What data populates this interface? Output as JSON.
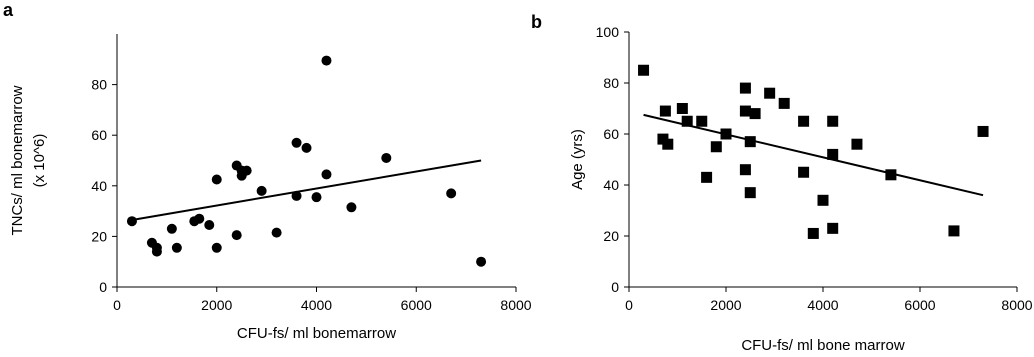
{
  "chart_data": [
    {
      "panel": "a",
      "type": "scatter",
      "marker": "circle",
      "xlabel": "CFU-fs/ ml bonemarrow",
      "ylabel_lines": [
        "TNCs/ ml bonemarrow",
        "(x 10^6)"
      ],
      "xlim": [
        0,
        8000
      ],
      "ylim": [
        0,
        100
      ],
      "xticks": [
        0,
        2000,
        4000,
        6000,
        8000
      ],
      "yticks": [
        0,
        20,
        40,
        60,
        80
      ],
      "points": [
        {
          "x": 300,
          "y": 26
        },
        {
          "x": 700,
          "y": 17.5
        },
        {
          "x": 800,
          "y": 14
        },
        {
          "x": 800,
          "y": 15.5
        },
        {
          "x": 1100,
          "y": 23
        },
        {
          "x": 1200,
          "y": 15.5
        },
        {
          "x": 1550,
          "y": 26
        },
        {
          "x": 1650,
          "y": 27
        },
        {
          "x": 1850,
          "y": 24.5
        },
        {
          "x": 2000,
          "y": 15.5
        },
        {
          "x": 2000,
          "y": 42.5
        },
        {
          "x": 2400,
          "y": 48
        },
        {
          "x": 2400,
          "y": 20.5
        },
        {
          "x": 2500,
          "y": 44
        },
        {
          "x": 2500,
          "y": 46
        },
        {
          "x": 2600,
          "y": 46
        },
        {
          "x": 2900,
          "y": 38
        },
        {
          "x": 3200,
          "y": 21.5
        },
        {
          "x": 3600,
          "y": 57
        },
        {
          "x": 3600,
          "y": 36
        },
        {
          "x": 3800,
          "y": 55
        },
        {
          "x": 4000,
          "y": 35.5
        },
        {
          "x": 4200,
          "y": 44.5
        },
        {
          "x": 4200,
          "y": 89.5
        },
        {
          "x": 4700,
          "y": 31.5
        },
        {
          "x": 5400,
          "y": 51
        },
        {
          "x": 6700,
          "y": 37
        },
        {
          "x": 7300,
          "y": 10
        }
      ],
      "trendline": {
        "x": [
          300,
          7300
        ],
        "y": [
          26.5,
          50
        ]
      }
    },
    {
      "panel": "b",
      "type": "scatter",
      "marker": "square",
      "xlabel": "CFU-fs/ ml bone marrow",
      "ylabel": "Age (yrs)",
      "xlim": [
        0,
        8000
      ],
      "ylim": [
        0,
        100
      ],
      "xticks": [
        0,
        2000,
        4000,
        6000,
        8000
      ],
      "yticks": [
        0,
        20,
        40,
        60,
        80,
        100
      ],
      "points": [
        {
          "x": 300,
          "y": 85
        },
        {
          "x": 700,
          "y": 58
        },
        {
          "x": 750,
          "y": 69
        },
        {
          "x": 800,
          "y": 56
        },
        {
          "x": 1100,
          "y": 70
        },
        {
          "x": 1200,
          "y": 65
        },
        {
          "x": 1500,
          "y": 65
        },
        {
          "x": 1600,
          "y": 43
        },
        {
          "x": 1800,
          "y": 55
        },
        {
          "x": 2000,
          "y": 60
        },
        {
          "x": 2400,
          "y": 78
        },
        {
          "x": 2400,
          "y": 69
        },
        {
          "x": 2400,
          "y": 46
        },
        {
          "x": 2500,
          "y": 57
        },
        {
          "x": 2500,
          "y": 37
        },
        {
          "x": 2600,
          "y": 68
        },
        {
          "x": 2900,
          "y": 76
        },
        {
          "x": 3200,
          "y": 72
        },
        {
          "x": 3600,
          "y": 65
        },
        {
          "x": 3600,
          "y": 45
        },
        {
          "x": 3800,
          "y": 21
        },
        {
          "x": 4000,
          "y": 34
        },
        {
          "x": 4200,
          "y": 65
        },
        {
          "x": 4200,
          "y": 52
        },
        {
          "x": 4200,
          "y": 23
        },
        {
          "x": 4700,
          "y": 56
        },
        {
          "x": 5400,
          "y": 44
        },
        {
          "x": 6700,
          "y": 22
        },
        {
          "x": 7300,
          "y": 61
        }
      ],
      "trendline": {
        "x": [
          300,
          7300
        ],
        "y": [
          67.5,
          36
        ]
      }
    }
  ]
}
